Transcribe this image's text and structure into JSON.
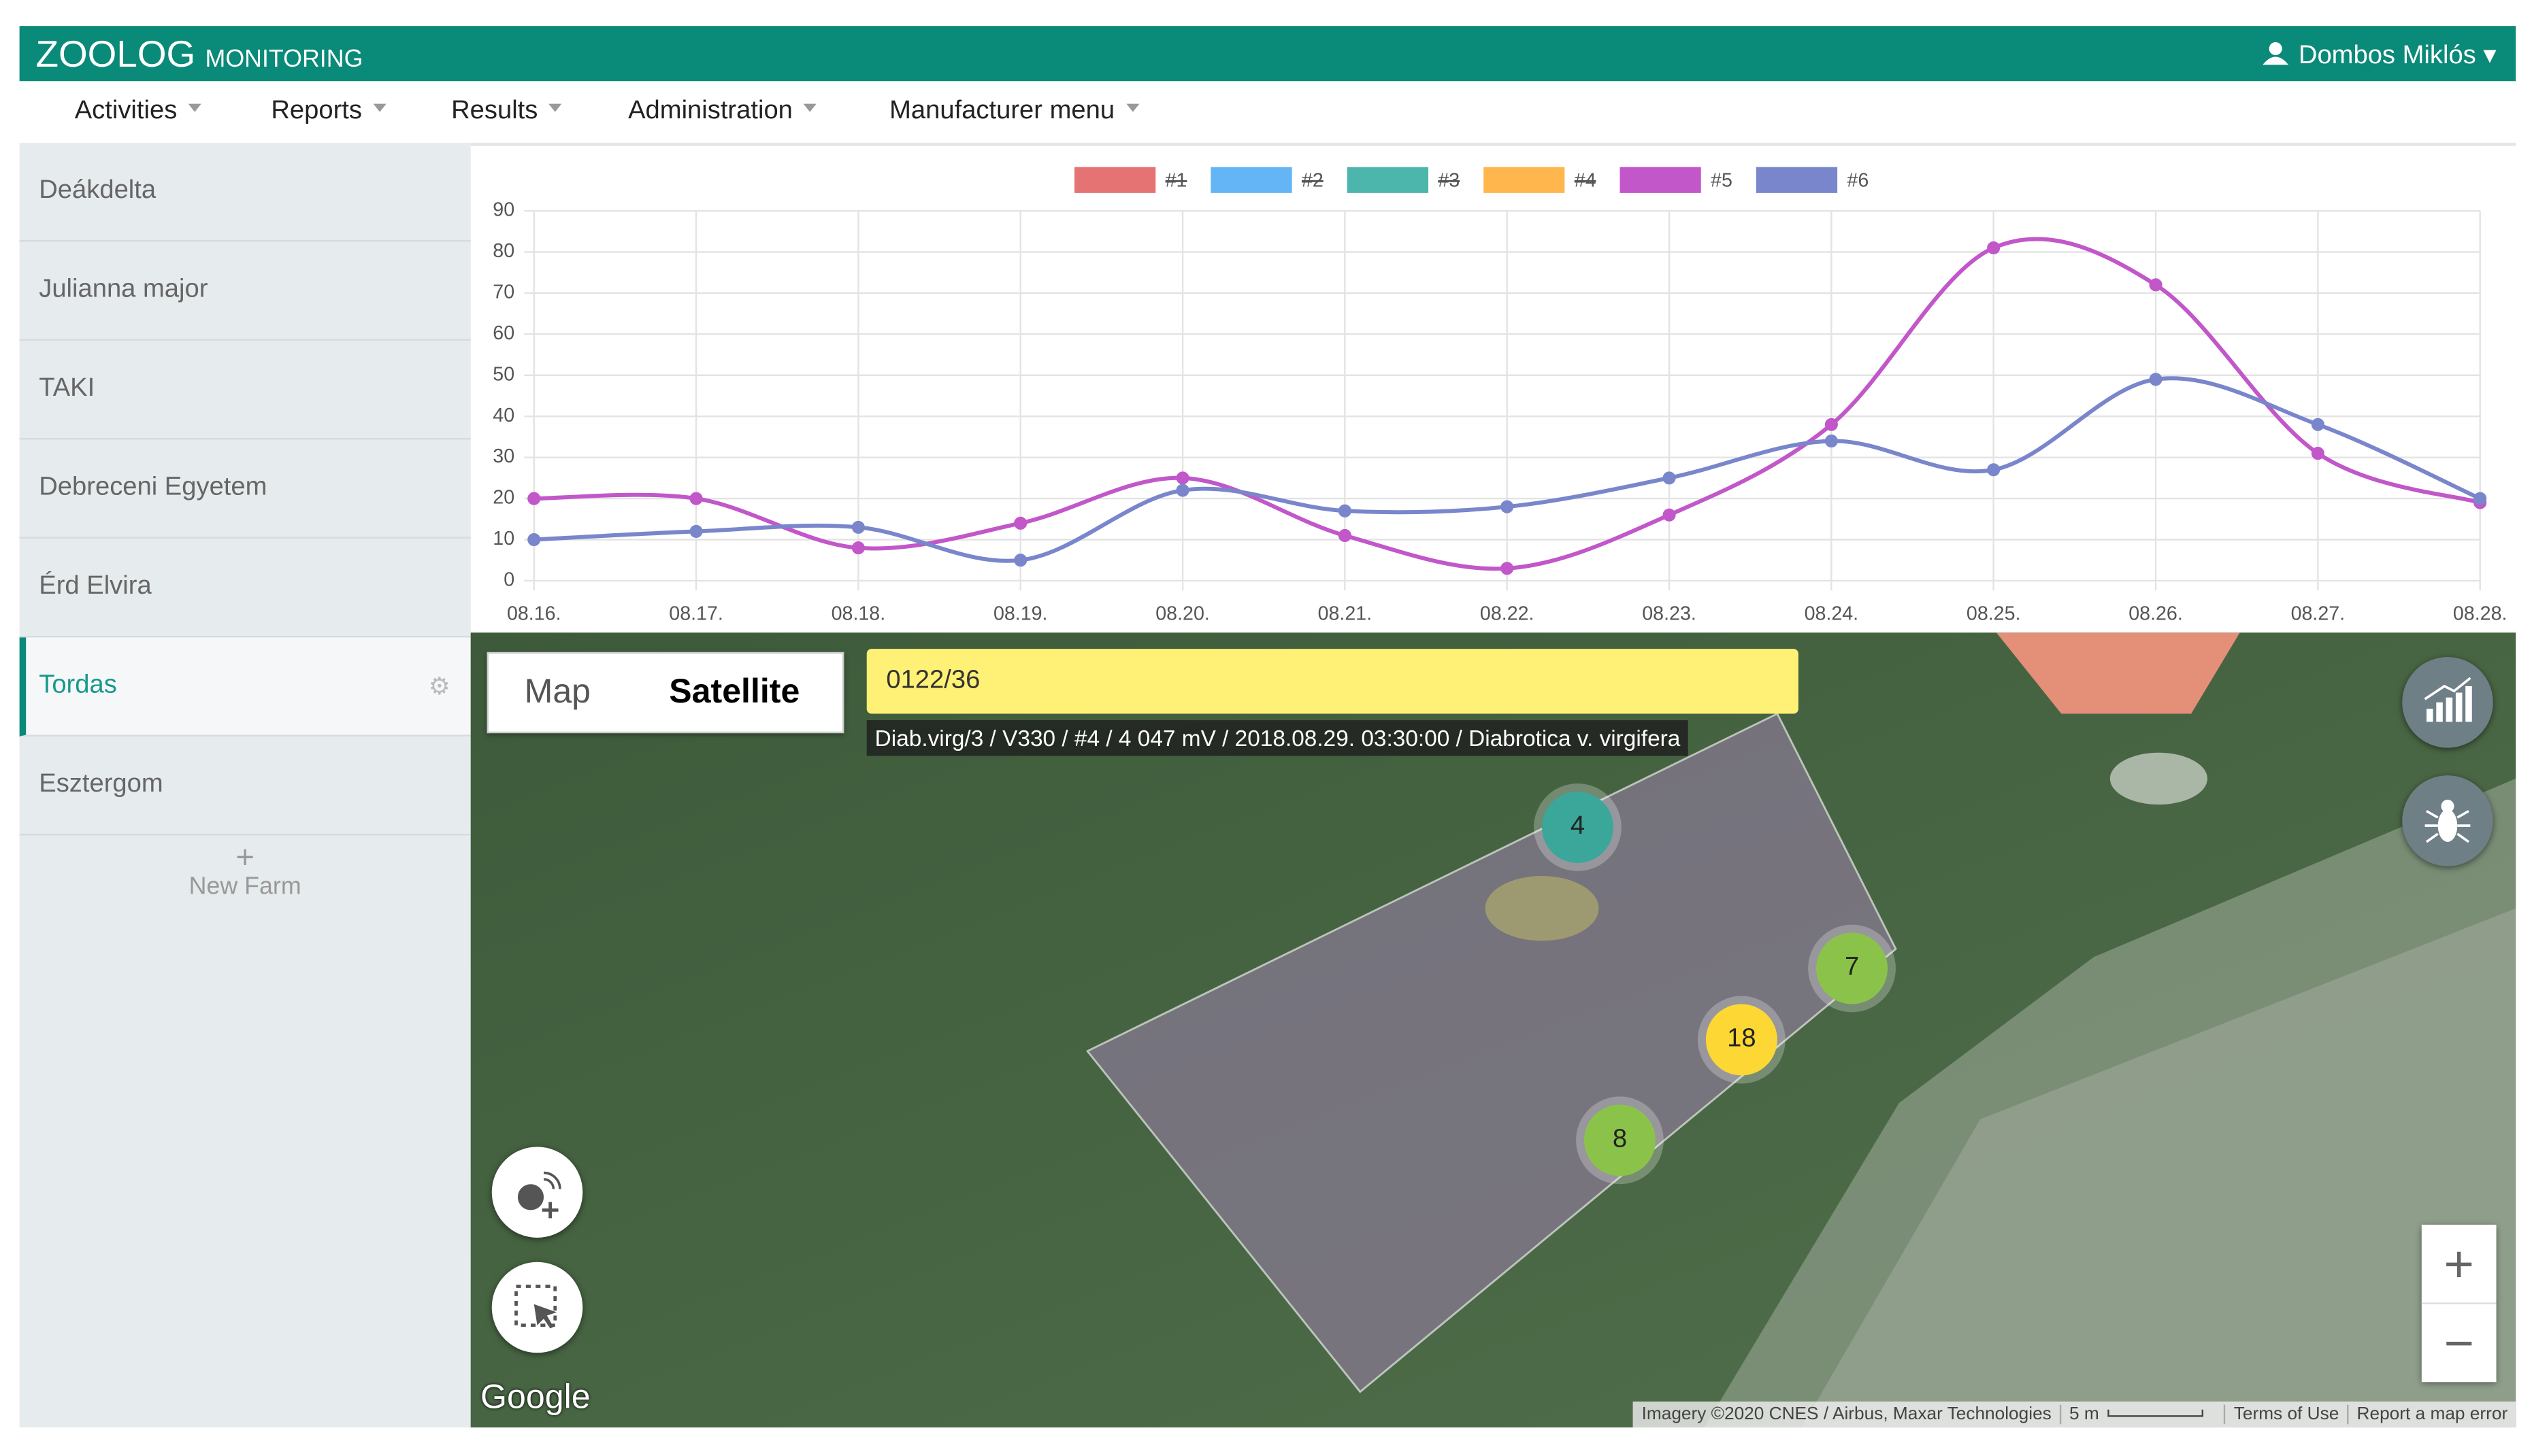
{
  "header": {
    "brand": "ZOOLOG",
    "brand_sub": "MONITORING",
    "user": "Dombos Miklós"
  },
  "nav": [
    "Activities",
    "Reports",
    "Results",
    "Administration",
    "Manufacturer menu"
  ],
  "farms": [
    "Deákdelta",
    "Julianna major",
    "TAKI",
    "Debreceni Egyetem",
    "Érd Elvira",
    "Tordas",
    "Esztergom"
  ],
  "new_farm": {
    "icon": "+",
    "label": "New Farm"
  },
  "chart_data": {
    "type": "line",
    "categories": [
      "08.16.",
      "08.17.",
      "08.18.",
      "08.19.",
      "08.20.",
      "08.21.",
      "08.22.",
      "08.23.",
      "08.24.",
      "08.25.",
      "08.26.",
      "08.27.",
      "08.28."
    ],
    "series": [
      {
        "name": "#1",
        "color": "#e57373",
        "hidden": true,
        "values": [
          null,
          null,
          null,
          null,
          null,
          null,
          null,
          null,
          null,
          null,
          null,
          null,
          null
        ]
      },
      {
        "name": "#2",
        "color": "#64b5f6",
        "hidden": true,
        "values": [
          null,
          null,
          null,
          null,
          null,
          null,
          null,
          null,
          null,
          null,
          null,
          null,
          null
        ]
      },
      {
        "name": "#3",
        "color": "#4db6ac",
        "hidden": true,
        "values": [
          null,
          null,
          null,
          null,
          null,
          null,
          null,
          null,
          null,
          null,
          null,
          null,
          null
        ]
      },
      {
        "name": "#4",
        "color": "#ffb74d",
        "hidden": true,
        "values": [
          null,
          null,
          null,
          null,
          null,
          null,
          null,
          null,
          null,
          null,
          null,
          null,
          null
        ]
      },
      {
        "name": "#5",
        "color": "#c157c9",
        "hidden": false,
        "values": [
          20,
          20,
          8,
          14,
          25,
          11,
          3,
          16,
          38,
          81,
          72,
          31,
          19
        ]
      },
      {
        "name": "#6",
        "color": "#7986cb",
        "hidden": false,
        "values": [
          10,
          12,
          13,
          5,
          22,
          17,
          18,
          25,
          34,
          27,
          49,
          38,
          20
        ]
      }
    ],
    "ylim": [
      0,
      90
    ],
    "yticks": [
      0,
      10,
      20,
      30,
      40,
      50,
      60,
      70,
      80,
      90
    ],
    "grid": true,
    "legend": "top"
  },
  "map": {
    "toggle": [
      "Map",
      "Satellite"
    ],
    "search": "0122/36",
    "tooltip": "Diab.virg/3 / V330 / #4 / 4 047 mV / 2018.08.29. 03:30:00 / Diabrotica v. virgifera",
    "clusters": [
      4,
      7,
      18,
      8
    ],
    "logo": "Google",
    "attribution": [
      "Imagery ©2020 CNES / Airbus, Maxar Technologies",
      "5 m",
      "Terms of Use",
      "Report a map error"
    ],
    "zoom": [
      "+",
      "−"
    ]
  }
}
